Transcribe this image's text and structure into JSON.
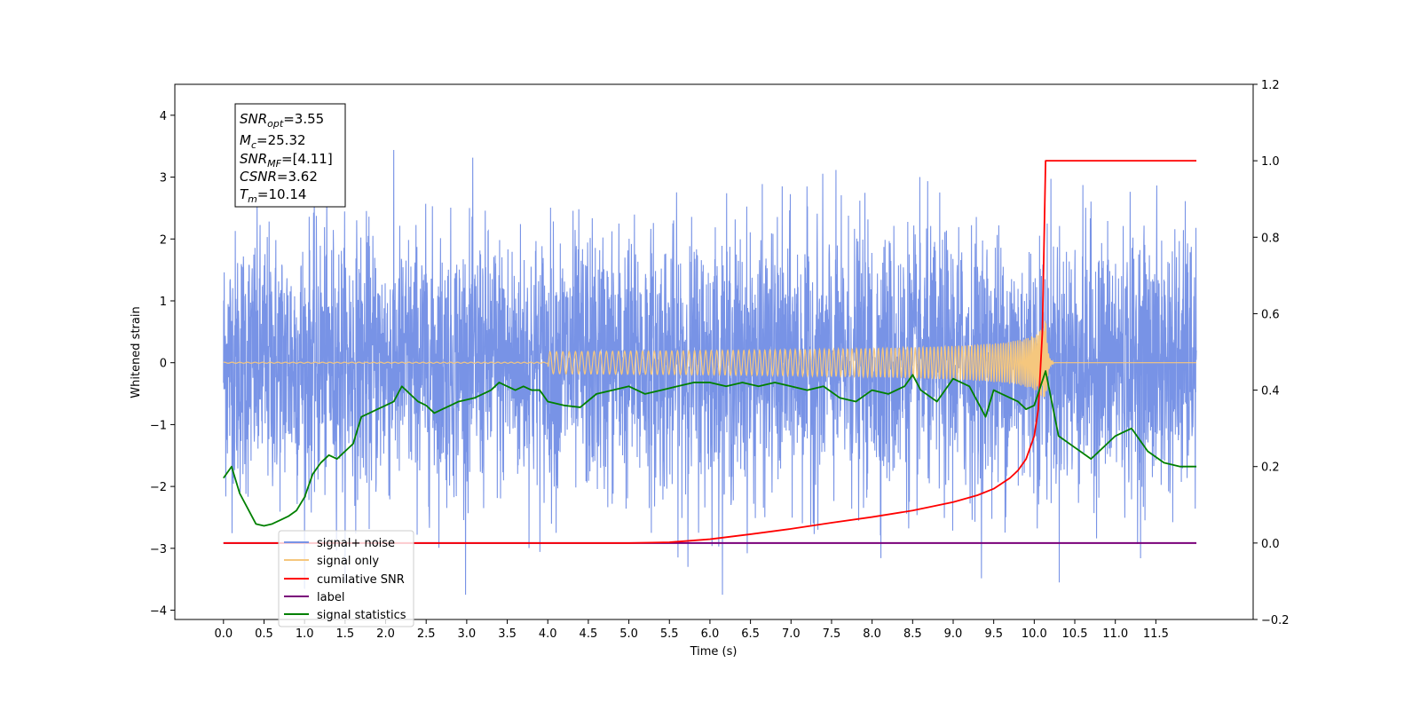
{
  "chart_data": {
    "type": "line",
    "xlabel": "Time (s)",
    "ylabel": "Whitened strain",
    "xlim": [
      -0.6,
      12.7
    ],
    "ylim": [
      -4.15,
      4.5
    ],
    "ylim_right": [
      -0.2,
      1.2
    ],
    "grid": false,
    "x_ticks": [
      "0.0",
      "0.5",
      "1.0",
      "1.5",
      "2.0",
      "2.5",
      "3.0",
      "3.5",
      "4.0",
      "4.5",
      "5.0",
      "5.5",
      "6.0",
      "6.5",
      "7.0",
      "7.5",
      "8.0",
      "8.5",
      "9.0",
      "9.5",
      "10.0",
      "10.5",
      "11.0",
      "11.5"
    ],
    "y_ticks_left": [
      "−4",
      "−3",
      "−2",
      "−1",
      "0",
      "1",
      "2",
      "3",
      "4"
    ],
    "y_ticks_right": [
      "−0.2",
      "0.0",
      "0.2",
      "0.4",
      "0.6",
      "0.8",
      "1.0",
      "1.2"
    ],
    "info_box": {
      "snr_opt": "=3.55",
      "mc": "=25.32",
      "snr_mf": "=[4.11]",
      "csnr": "=3.62",
      "tm": "=10.14"
    },
    "series": [
      {
        "name": "signal+ noise",
        "axis": "left",
        "color": "#7893e6",
        "description_range": [
          -3.75,
          3.7
        ],
        "x_range": [
          0.0,
          12.0
        ]
      },
      {
        "name": "signal only",
        "axis": "left",
        "color": "#f5c77e",
        "merger_time": 10.14,
        "peak_amplitude": 0.75
      },
      {
        "name": "cumilative SNR",
        "axis": "right",
        "color": "#ff0000",
        "x": [
          0.0,
          5.0,
          5.5,
          6.0,
          6.5,
          7.0,
          7.5,
          8.0,
          8.5,
          9.0,
          9.3,
          9.5,
          9.7,
          9.8,
          9.9,
          10.0,
          10.05,
          10.1,
          10.14,
          12.0
        ],
        "values": [
          0.0,
          0.0,
          0.002,
          0.01,
          0.023,
          0.037,
          0.053,
          0.068,
          0.085,
          0.107,
          0.125,
          0.142,
          0.17,
          0.19,
          0.22,
          0.28,
          0.35,
          0.55,
          1.0,
          1.0
        ]
      },
      {
        "name": "label",
        "axis": "right",
        "color": "#7a007a",
        "x": [
          0.0,
          12.0
        ],
        "values": [
          0.0,
          0.0
        ]
      },
      {
        "name": "signal statistics",
        "axis": "right",
        "color": "#008000",
        "x": [
          0.0,
          0.1,
          0.2,
          0.3,
          0.4,
          0.5,
          0.6,
          0.7,
          0.8,
          0.9,
          1.0,
          1.1,
          1.2,
          1.3,
          1.4,
          1.5,
          1.6,
          1.7,
          1.8,
          1.9,
          2.0,
          2.1,
          2.2,
          2.3,
          2.4,
          2.5,
          2.6,
          2.7,
          2.8,
          2.9,
          3.0,
          3.1,
          3.2,
          3.3,
          3.4,
          3.5,
          3.6,
          3.7,
          3.8,
          3.9,
          4.0,
          4.2,
          4.4,
          4.6,
          4.8,
          5.0,
          5.2,
          5.4,
          5.6,
          5.8,
          6.0,
          6.2,
          6.4,
          6.6,
          6.8,
          7.0,
          7.2,
          7.4,
          7.6,
          7.8,
          8.0,
          8.2,
          8.4,
          8.5,
          8.6,
          8.8,
          9.0,
          9.2,
          9.4,
          9.5,
          9.6,
          9.8,
          9.9,
          10.0,
          10.14,
          10.3,
          10.5,
          10.7,
          10.8,
          10.9,
          11.0,
          11.2,
          11.4,
          11.6,
          11.8,
          12.0
        ],
        "values": [
          0.17,
          0.2,
          0.13,
          0.09,
          0.05,
          0.045,
          0.05,
          0.06,
          0.07,
          0.085,
          0.12,
          0.18,
          0.21,
          0.23,
          0.22,
          0.24,
          0.26,
          0.33,
          0.34,
          0.35,
          0.36,
          0.37,
          0.41,
          0.39,
          0.37,
          0.36,
          0.34,
          0.35,
          0.36,
          0.37,
          0.375,
          0.38,
          0.39,
          0.4,
          0.42,
          0.41,
          0.4,
          0.41,
          0.4,
          0.4,
          0.37,
          0.36,
          0.355,
          0.39,
          0.4,
          0.41,
          0.39,
          0.4,
          0.41,
          0.42,
          0.42,
          0.41,
          0.42,
          0.41,
          0.42,
          0.41,
          0.4,
          0.41,
          0.38,
          0.37,
          0.4,
          0.39,
          0.41,
          0.44,
          0.4,
          0.37,
          0.43,
          0.41,
          0.33,
          0.4,
          0.39,
          0.37,
          0.35,
          0.36,
          0.45,
          0.28,
          0.25,
          0.22,
          0.24,
          0.26,
          0.28,
          0.3,
          0.24,
          0.21,
          0.2,
          0.2
        ]
      }
    ],
    "legend": {
      "placement": "lower-left",
      "entries": [
        "signal+ noise",
        "signal only",
        "cumilative SNR",
        "label",
        "signal statistics"
      ]
    }
  }
}
